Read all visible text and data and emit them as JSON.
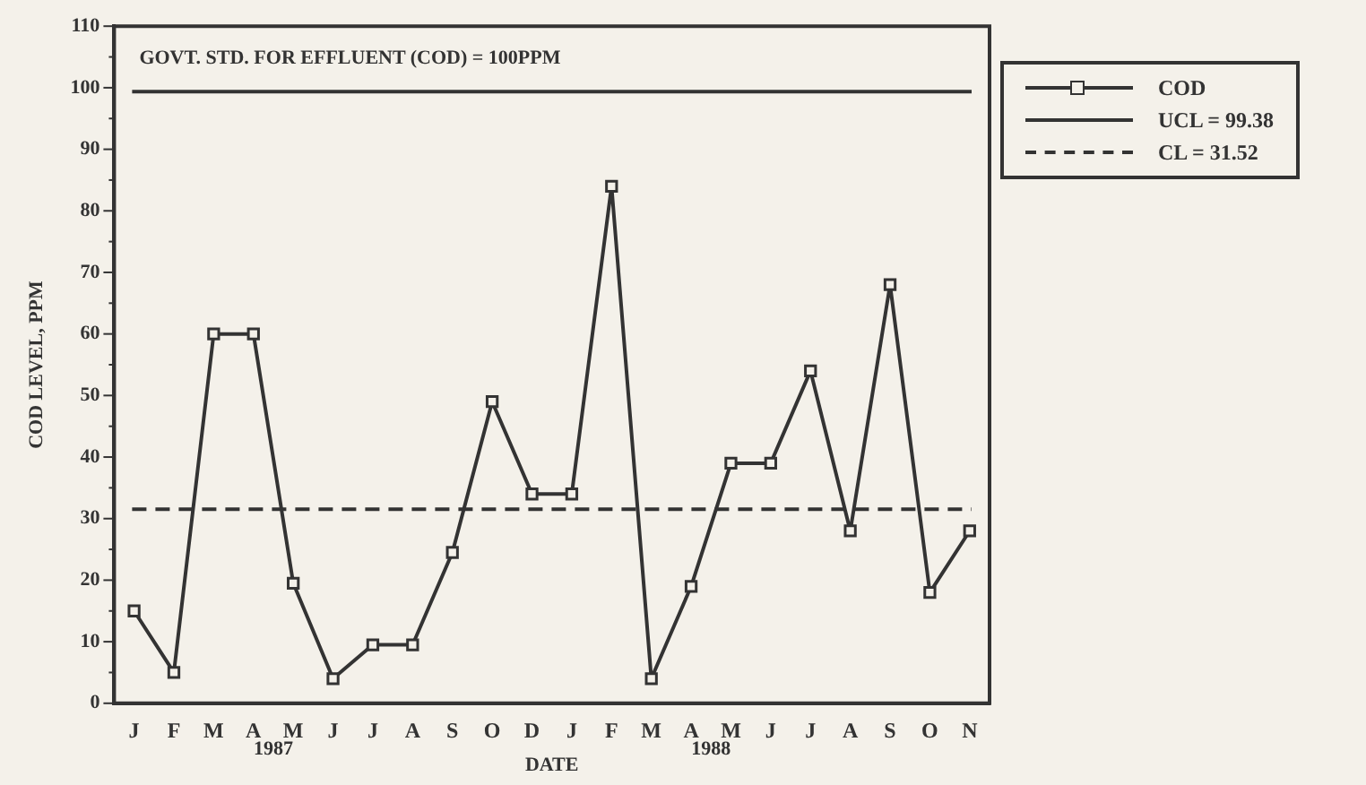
{
  "chart_data": {
    "type": "line",
    "xlabel": "DATE",
    "ylabel": "COD LEVEL, PPM",
    "categories": [
      "J",
      "F",
      "M",
      "A",
      "M",
      "J",
      "J",
      "A",
      "S",
      "O",
      "D",
      "J",
      "F",
      "M",
      "A",
      "M",
      "J",
      "J",
      "A",
      "S",
      "O",
      "N"
    ],
    "series": [
      {
        "name": "COD",
        "color": "#333333",
        "values": [
          15,
          5,
          60,
          60,
          19.5,
          4,
          9.5,
          9.5,
          24.5,
          49,
          34,
          34,
          84,
          4,
          19,
          39,
          39,
          54,
          28,
          68,
          18,
          28
        ]
      }
    ],
    "ylim": [
      0,
      110
    ],
    "yticks": [
      0,
      10,
      20,
      30,
      40,
      50,
      60,
      70,
      80,
      90,
      100,
      110
    ],
    "ref_lines": [
      {
        "axis": "y",
        "value": 99.38,
        "label": "UCL = 99.38",
        "color": "#333333",
        "line_style": "solid"
      },
      {
        "axis": "y",
        "value": 31.52,
        "label": "CL = 31.52",
        "color": "#333333",
        "line_style": "dashed"
      }
    ],
    "annotations": [
      "GOVT. STD. FOR EFFLUENT (COD) = 100PPM",
      "1987",
      "1988"
    ],
    "marker": "square",
    "line_style": "solid",
    "grid": false,
    "legend": "top right"
  }
}
